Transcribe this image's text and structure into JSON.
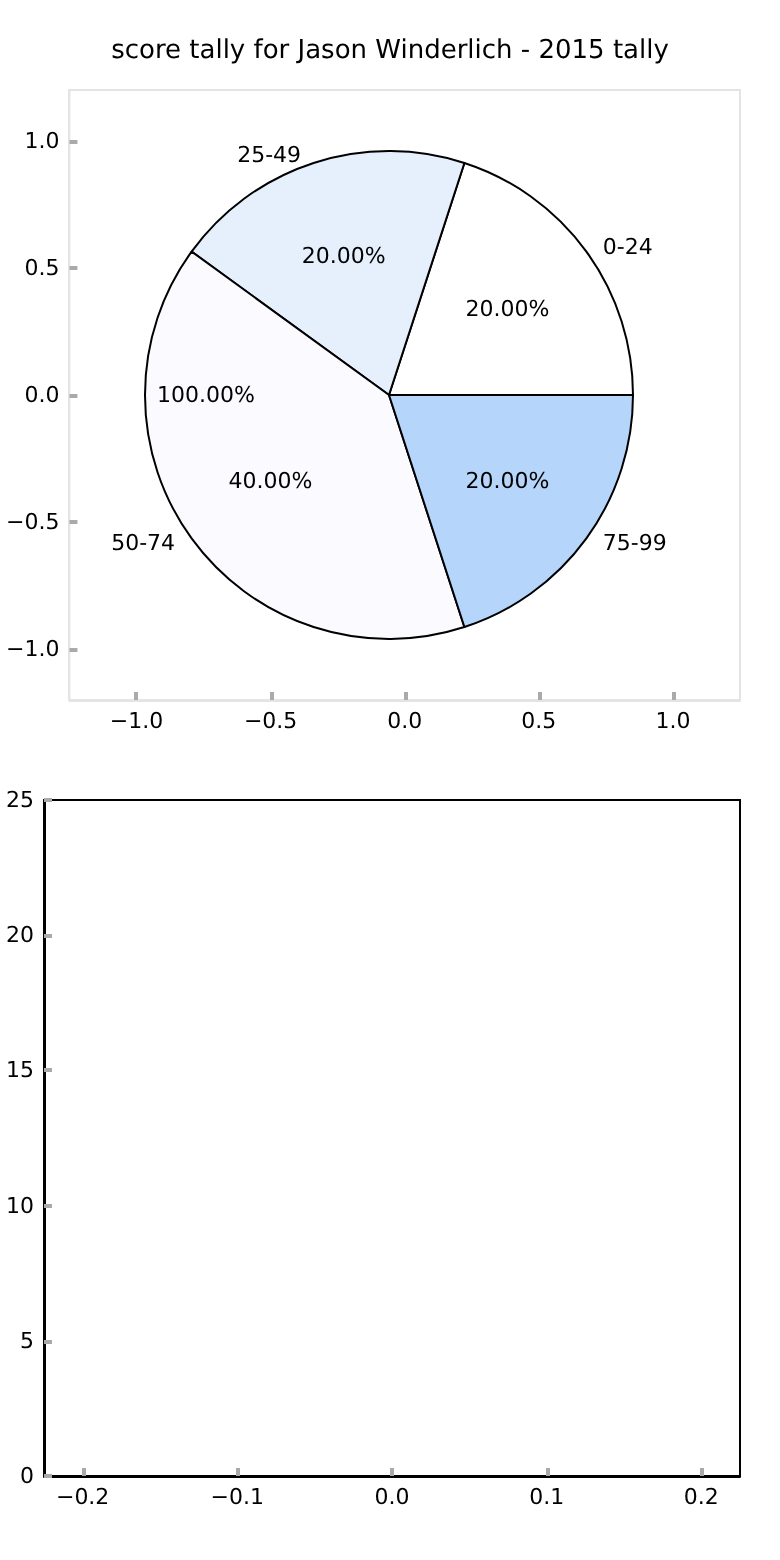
{
  "chart_data": [
    {
      "type": "pie",
      "title": "score tally for Jason Winderlich - 2015 tally",
      "categories": [
        "0-24",
        "25-49",
        "50-74",
        "75-99"
      ],
      "values": [
        20,
        20,
        40,
        20
      ],
      "colors": [
        "#ffffff",
        "#e6effc",
        "#fbfbff",
        "#b6d5fb"
      ],
      "value_labels": [
        "20.00%",
        "20.00%",
        "40.00%",
        "20.00%"
      ],
      "annotations": [
        "100.00%"
      ]
    },
    {
      "type": "scatter",
      "xlim": [
        -1.25,
        1.25
      ],
      "ylim": [
        -1.2,
        1.2
      ],
      "xticks": [
        {
          "value": -1,
          "label": "−1.0"
        },
        {
          "value": -0.5,
          "label": "−0.5"
        },
        {
          "value": 0,
          "label": "0.0"
        },
        {
          "value": 0.5,
          "label": "0.5"
        },
        {
          "value": 1,
          "label": "1.0"
        }
      ],
      "yticks": [
        {
          "value": -1,
          "label": "−1.0"
        },
        {
          "value": -0.5,
          "label": "−0.5"
        },
        {
          "value": 0,
          "label": "0.0"
        },
        {
          "value": 0.5,
          "label": "0.5"
        },
        {
          "value": 1,
          "label": "1.0"
        }
      ]
    },
    {
      "type": "scatter",
      "xlim": [
        -0.225,
        0.225
      ],
      "ylim": [
        0,
        25
      ],
      "xticks": [
        {
          "value": -0.2,
          "label": "−0.2"
        },
        {
          "value": -0.1,
          "label": "−0.1"
        },
        {
          "value": 0,
          "label": "0.0"
        },
        {
          "value": 0.1,
          "label": "0.1"
        },
        {
          "value": 0.2,
          "label": "0.2"
        }
      ],
      "yticks": [
        0,
        5,
        10,
        15,
        20,
        25
      ]
    }
  ]
}
